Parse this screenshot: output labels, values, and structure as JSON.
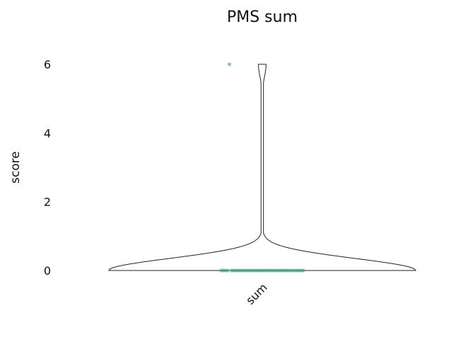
{
  "chart_data": {
    "type": "violin",
    "title": "PMS sum",
    "xlabel": "",
    "ylabel": "score",
    "categories": [
      "sum"
    ],
    "yticks": [
      0,
      2,
      4,
      6
    ],
    "ylim": [
      -0.3,
      6.3
    ],
    "grid": false,
    "point_color": "#3a9a80",
    "series": [
      {
        "values": [
          0,
          0,
          0,
          0,
          0,
          0,
          0,
          0,
          0,
          0,
          0,
          0,
          0,
          0,
          0,
          0,
          0,
          0,
          0,
          0,
          0,
          0,
          0,
          0,
          0,
          0,
          0,
          0,
          0,
          0,
          0,
          0,
          0,
          0,
          0,
          0,
          0,
          0,
          0,
          0,
          6
        ]
      }
    ]
  }
}
